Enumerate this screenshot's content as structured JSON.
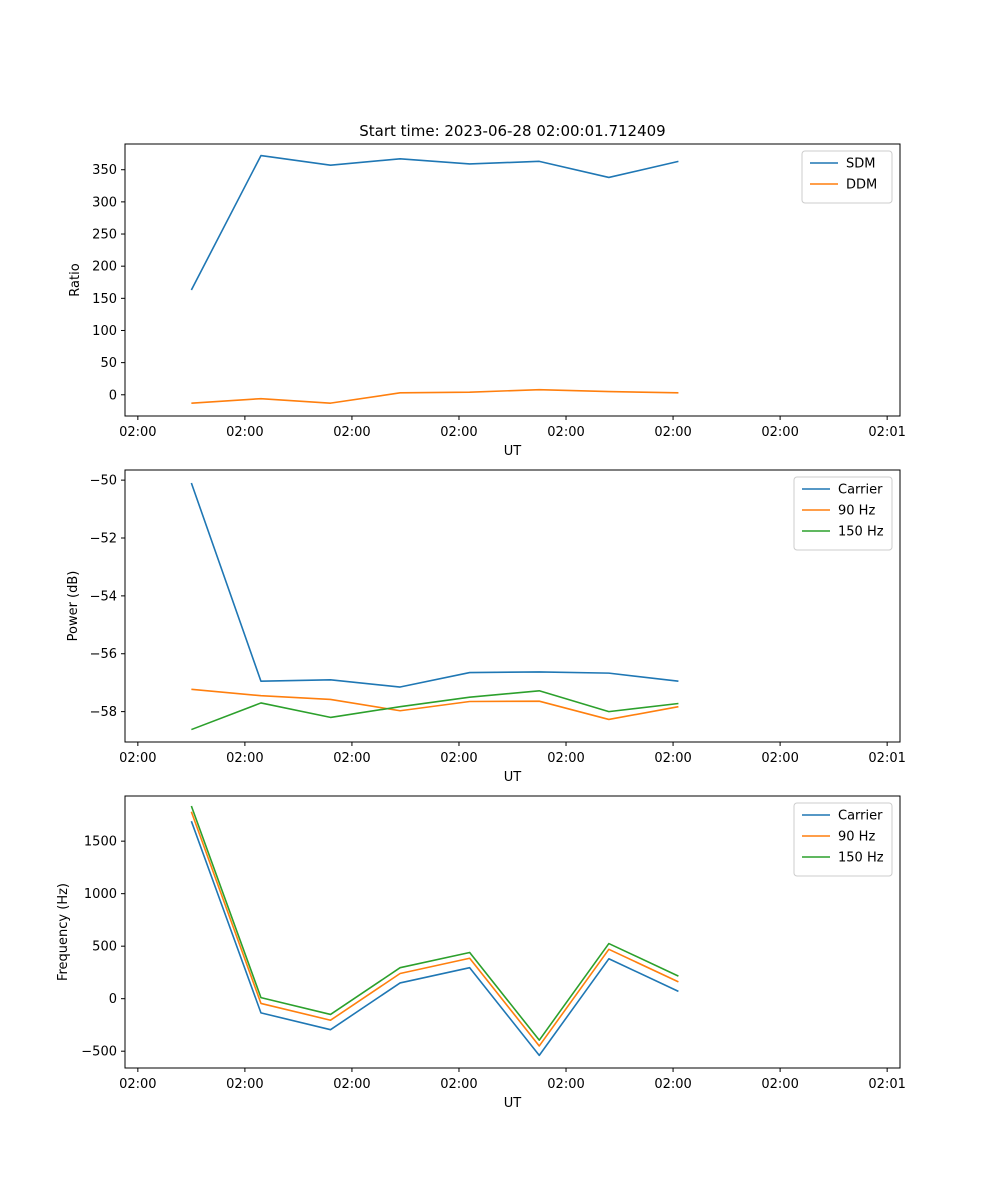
{
  "chart_data": [
    {
      "type": "line",
      "title": "Start time: 2023-06-28 02:00:01.712409",
      "xlabel": "UT",
      "ylabel": "Ratio",
      "x_tick_labels": [
        "02:00",
        "02:00",
        "02:00",
        "02:00",
        "02:00",
        "02:00",
        "02:00",
        "02:01"
      ],
      "x_tick_values": [
        0,
        10,
        20,
        30,
        40,
        50,
        60,
        70
      ],
      "x": [
        5,
        11.5,
        18,
        24.5,
        31,
        37.5,
        44,
        50.5
      ],
      "xlim": [
        -1.2,
        71.2
      ],
      "yticks": [
        0,
        50,
        100,
        150,
        200,
        250,
        300,
        350
      ],
      "ylim": [
        -33,
        390
      ],
      "legend_position": "upper right",
      "series": [
        {
          "name": "SDM",
          "color": "#1f77b4",
          "values": [
            163,
            372,
            357,
            367,
            359,
            363,
            338,
            363
          ]
        },
        {
          "name": "DDM",
          "color": "#ff7f0e",
          "values": [
            -13,
            -6,
            -13,
            3,
            4,
            8,
            5,
            3
          ]
        }
      ]
    },
    {
      "type": "line",
      "title": "",
      "xlabel": "UT",
      "ylabel": "Power (dB)",
      "x_tick_labels": [
        "02:00",
        "02:00",
        "02:00",
        "02:00",
        "02:00",
        "02:00",
        "02:00",
        "02:01"
      ],
      "x_tick_values": [
        0,
        10,
        20,
        30,
        40,
        50,
        60,
        70
      ],
      "x": [
        5,
        11.5,
        18,
        24.5,
        31,
        37.5,
        44,
        50.5
      ],
      "xlim": [
        -1.2,
        71.2
      ],
      "yticks": [
        -58,
        -56,
        -54,
        -52,
        -50
      ],
      "ylim": [
        -59.05,
        -49.65
      ],
      "legend_position": "upper right",
      "series": [
        {
          "name": "Carrier",
          "color": "#1f77b4",
          "values": [
            -50.1,
            -56.95,
            -56.9,
            -57.15,
            -56.65,
            -56.63,
            -56.67,
            -56.95
          ]
        },
        {
          "name": "90 Hz",
          "color": "#ff7f0e",
          "values": [
            -57.23,
            -57.45,
            -57.58,
            -57.97,
            -57.65,
            -57.64,
            -58.27,
            -57.83
          ]
        },
        {
          "name": "150 Hz",
          "color": "#2ca02c",
          "values": [
            -58.62,
            -57.7,
            -58.2,
            -57.83,
            -57.5,
            -57.28,
            -58.0,
            -57.72
          ]
        }
      ]
    },
    {
      "type": "line",
      "title": "",
      "xlabel": "UT",
      "ylabel": "Frequency (Hz)",
      "x_tick_labels": [
        "02:00",
        "02:00",
        "02:00",
        "02:00",
        "02:00",
        "02:00",
        "02:00",
        "02:01"
      ],
      "x_tick_values": [
        0,
        10,
        20,
        30,
        40,
        50,
        60,
        70
      ],
      "x": [
        5,
        11.5,
        18,
        24.5,
        31,
        37.5,
        44,
        50.5
      ],
      "xlim": [
        -1.2,
        71.2
      ],
      "yticks": [
        -500,
        0,
        500,
        1000,
        1500
      ],
      "ylim": [
        -660,
        1930
      ],
      "legend_position": "upper right",
      "series": [
        {
          "name": "Carrier",
          "color": "#1f77b4",
          "values": [
            1690,
            -135,
            -295,
            150,
            295,
            -540,
            380,
            70
          ]
        },
        {
          "name": "90 Hz",
          "color": "#ff7f0e",
          "values": [
            1780,
            -45,
            -205,
            240,
            385,
            -450,
            470,
            160
          ]
        },
        {
          "name": "150 Hz",
          "color": "#2ca02c",
          "values": [
            1835,
            10,
            -150,
            295,
            440,
            -395,
            525,
            215
          ]
        }
      ]
    }
  ]
}
